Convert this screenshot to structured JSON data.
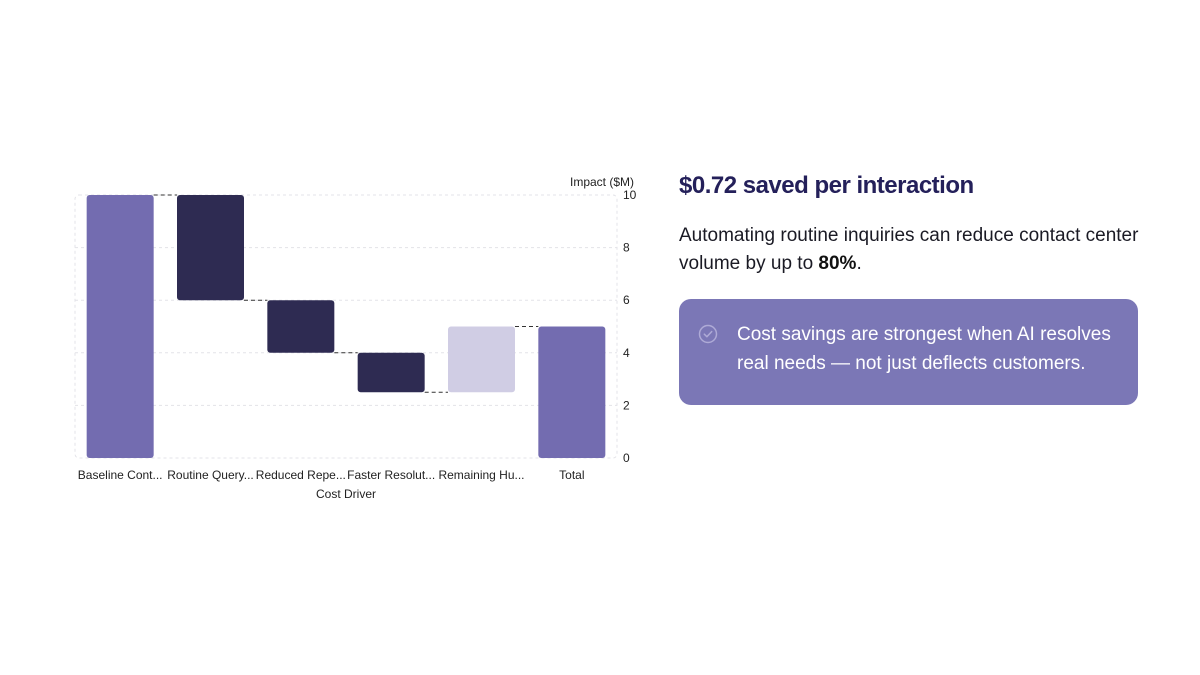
{
  "chart_data": {
    "type": "waterfall",
    "xlabel": "Cost Driver",
    "ylabel": "Impact ($M)",
    "ylim": [
      0,
      10
    ],
    "yticks": [
      0,
      2,
      4,
      6,
      8,
      10
    ],
    "grid": true,
    "categories": [
      "Baseline Cont...",
      "Routine Query...",
      "Reduced Repe...",
      "Faster Resolut...",
      "Remaining Hu...",
      "Total"
    ],
    "bars": [
      {
        "label": "Baseline Cont...",
        "start": 0,
        "end": 10,
        "kind": "total"
      },
      {
        "label": "Routine Query...",
        "start": 10,
        "end": 6,
        "kind": "decrease"
      },
      {
        "label": "Reduced Repe...",
        "start": 6,
        "end": 4,
        "kind": "decrease"
      },
      {
        "label": "Faster Resolut...",
        "start": 4,
        "end": 2.5,
        "kind": "decrease"
      },
      {
        "label": "Remaining Hu...",
        "start": 2.5,
        "end": 5,
        "kind": "increase"
      },
      {
        "label": "Total",
        "start": 0,
        "end": 5,
        "kind": "total"
      }
    ],
    "colors": {
      "total": "#736cb0",
      "decrease": "#2e2b52",
      "increase": "#d0cde4",
      "grid": "#e3e3e8",
      "connector": "#333333"
    }
  },
  "panel": {
    "headline": "$0.72 saved per interaction",
    "body_before": "Automating routine inquiries can reduce contact center volume by up to ",
    "body_bold": "80%",
    "body_after": ".",
    "callout": {
      "icon": "check-circle-icon",
      "text": "Cost savings are strongest when AI resolves real needs — not just deflects customers.",
      "background": "#7b77b6"
    }
  }
}
